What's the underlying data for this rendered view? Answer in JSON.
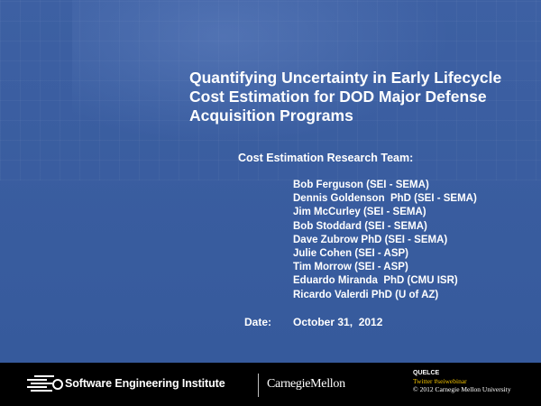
{
  "slide": {
    "title": "Quantifying Uncertainty in Early  Lifecycle\nCost Estimation for DOD Major Defense\nAcquisition Programs",
    "team_heading": "Cost Estimation Research Team:",
    "team_members": [
      "Bob Ferguson (SEI - SEMA)",
      "Dennis Goldenson  PhD (SEI - SEMA)",
      "Jim McCurley (SEI - SEMA)",
      "Bob Stoddard (SEI - SEMA)",
      "Dave Zubrow PhD (SEI - SEMA)",
      "Julie Cohen (SEI - ASP)",
      "Tim Morrow (SEI - ASP)",
      "Eduardo Miranda  PhD (CMU ISR)",
      "Ricardo Valerdi PhD (U of AZ)"
    ],
    "date_label": "Date:",
    "date_value": "October 31,  2012"
  },
  "footer": {
    "sei_name": "Software Engineering Institute",
    "cmu_name": "CarnegieMellon",
    "project": "QUELCE",
    "twitter": "Twitter #seiwebinar",
    "copyright": "© 2012 Carnegie Mellon University"
  },
  "colors": {
    "background": "#3b5ea1",
    "footer": "#000000",
    "twitter": "#f2c200",
    "text": "#ffffff"
  }
}
